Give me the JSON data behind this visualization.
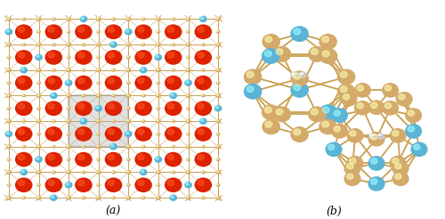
{
  "figsize": [
    5.0,
    2.46
  ],
  "dpi": 100,
  "background_color": "#ffffff",
  "panel_a_label": "(a)",
  "panel_b_label": "(b)",
  "label_fontsize": 9,
  "label_style": "italic",
  "label_fontfamily": "serif",
  "atom_colors": {
    "red": "#dd2200",
    "blue": "#5ab4d6",
    "tan": "#d4aa6a",
    "grey_light": "#cccccc",
    "white": "#f0f0f0"
  },
  "bond_color": "#c8a050",
  "cell_color": "#999999",
  "cell_fill": "#aaaaaa55"
}
